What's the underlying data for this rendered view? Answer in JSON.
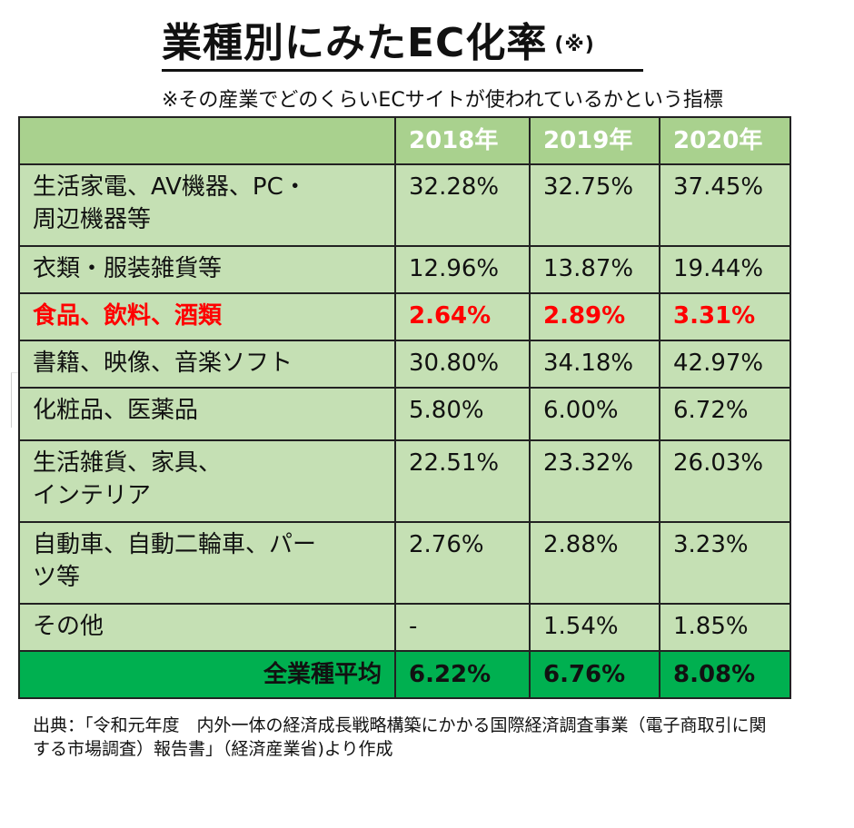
{
  "title": "業種別にみたEC化率",
  "title_mark": "(※)",
  "note": "※その産業でどのくらいECサイトが使われているかという指標",
  "table": {
    "headers": [
      "",
      "2018年",
      "2019年",
      "2020年"
    ],
    "rows": [
      {
        "category": "生活家電、AV機器、PC・\n周辺機器等",
        "values": [
          "32.28%",
          "32.75%",
          "37.45%"
        ]
      },
      {
        "category": "衣類・服装雑貨等",
        "values": [
          "12.96%",
          "13.87%",
          "19.44%"
        ]
      },
      {
        "category": "食品、飲料、酒類",
        "values": [
          "2.64%",
          "2.89%",
          "3.31%"
        ],
        "highlight": true
      },
      {
        "category": "書籍、映像、音楽ソフト",
        "values": [
          "30.80%",
          "34.18%",
          "42.97%"
        ]
      },
      {
        "category": "化粧品、医薬品",
        "values": [
          "5.80%",
          "6.00%",
          "6.72%"
        ]
      },
      {
        "category": "生活雑貨、家具、\nインテリア",
        "values": [
          "22.51%",
          "23.32%",
          "26.03%"
        ]
      },
      {
        "category": "自動車、自動二輪車、パー\nツ等",
        "values": [
          "2.76%",
          "2.88%",
          "3.23%"
        ]
      },
      {
        "category": "その他",
        "values": [
          "-",
          "1.54%",
          "1.85%"
        ]
      }
    ],
    "average": {
      "label": "全業種平均",
      "values": [
        "6.22%",
        "6.76%",
        "8.08%"
      ]
    }
  },
  "source": "出典：「令和元年度　内外一体の経済成長戦略構築にかかる国際経済調査事業（電子商取引に関する市場調査）報告書」（経済産業省)より作成",
  "colors": {
    "header_bg": "#a9d18e",
    "row_bg": "#c5e0b4",
    "average_bg": "#00b050",
    "highlight_text": "#ff0000"
  }
}
